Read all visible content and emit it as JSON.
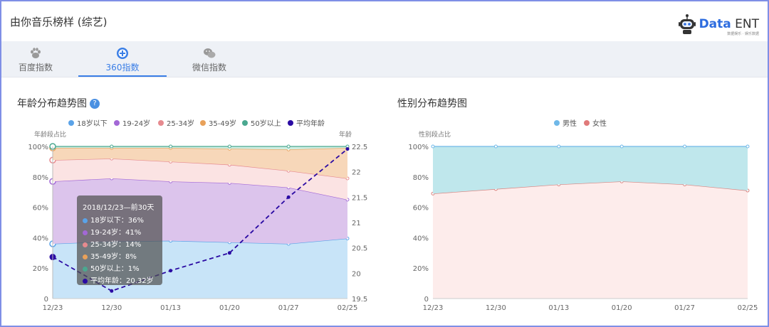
{
  "app": {
    "title": "由你音乐榜样 (综艺)",
    "brand_main": "Data",
    "brand_sub": "ENT",
    "brand_tag": "数据娱乐 · 娱乐数据"
  },
  "tabs": [
    {
      "label": "百度指数",
      "icon": "paw-icon",
      "active": false
    },
    {
      "label": "360指数",
      "icon": "plus-circle-icon",
      "active": true
    },
    {
      "label": "微信指数",
      "icon": "wechat-icon",
      "active": false
    }
  ],
  "age_panel": {
    "title": "年龄分布趋势图",
    "help_icon": "?",
    "legend": [
      {
        "label": "18岁以下",
        "color": "#5aa3e8"
      },
      {
        "label": "19-24岁",
        "color": "#a368d6"
      },
      {
        "label": "25-34岁",
        "color": "#e68a8f"
      },
      {
        "label": "35-49岁",
        "color": "#e8a15a"
      },
      {
        "label": "50岁以上",
        "color": "#4aa890"
      },
      {
        "label": "平均年龄",
        "color": "#2a0aa3"
      }
    ],
    "y_left_label": "年龄段占比",
    "y_right_label": "年龄",
    "tooltip": {
      "title": "2018/12/23—前30天",
      "rows": [
        {
          "text": "18岁以下：36%",
          "color": "#5aa3e8"
        },
        {
          "text": "19-24岁：41%",
          "color": "#a368d6"
        },
        {
          "text": "25-34岁：14%",
          "color": "#e68a8f"
        },
        {
          "text": "35-49岁：8%",
          "color": "#e8a15a"
        },
        {
          "text": "50岁以上：1%",
          "color": "#4aa890"
        },
        {
          "text": "平均年龄：20.32岁",
          "color": "#2a0aa3"
        }
      ]
    }
  },
  "gender_panel": {
    "title": "性别分布趋势图",
    "legend": [
      {
        "label": "男性",
        "color": "#6fb8e8"
      },
      {
        "label": "女性",
        "color": "#e07a7a"
      }
    ],
    "y_left_label": "性别段占比"
  },
  "chart_data": [
    {
      "type": "area",
      "stacked": true,
      "x": [
        "12/23",
        "12/30",
        "01/13",
        "01/20",
        "01/27",
        "02/25"
      ],
      "y_left_ticks": [
        "0",
        "20%",
        "40%",
        "60%",
        "80%",
        "100%"
      ],
      "y_right_ticks": [
        "19.5",
        "20",
        "20.5",
        "21",
        "21.5",
        "22",
        "22.5"
      ],
      "ylim_left": [
        0,
        100
      ],
      "ylim_right": [
        19.5,
        22.5
      ],
      "series": [
        {
          "name": "18岁以下",
          "values": [
            36,
            37.5,
            38,
            37,
            36,
            39.5
          ]
        },
        {
          "name": "19-24岁",
          "values": [
            41,
            41.5,
            39,
            39,
            37,
            25.5
          ]
        },
        {
          "name": "25-34岁",
          "values": [
            14,
            13,
            13,
            12,
            11,
            14
          ]
        },
        {
          "name": "35-49岁",
          "values": [
            8,
            7,
            9,
            10.5,
            14,
            20
          ]
        },
        {
          "name": "50岁以上",
          "values": [
            1,
            1,
            1,
            1.5,
            2,
            1
          ]
        }
      ],
      "line_series": {
        "name": "平均年龄",
        "axis": "right",
        "values": [
          20.32,
          19.65,
          20.05,
          20.4,
          21.5,
          22.45
        ]
      },
      "grid": true,
      "legend_position": "top"
    },
    {
      "type": "area",
      "stacked": true,
      "x": [
        "12/23",
        "12/30",
        "01/13",
        "01/20",
        "01/27",
        "02/25"
      ],
      "y_left_ticks": [
        "0",
        "20%",
        "40%",
        "60%",
        "80%",
        "100%"
      ],
      "ylim_left": [
        0,
        100
      ],
      "series": [
        {
          "name": "女性",
          "values": [
            69,
            72,
            75,
            77,
            75,
            71
          ]
        },
        {
          "name": "男性",
          "values": [
            31,
            28,
            25,
            23,
            25,
            29
          ]
        }
      ],
      "grid": true,
      "legend_position": "top"
    }
  ]
}
